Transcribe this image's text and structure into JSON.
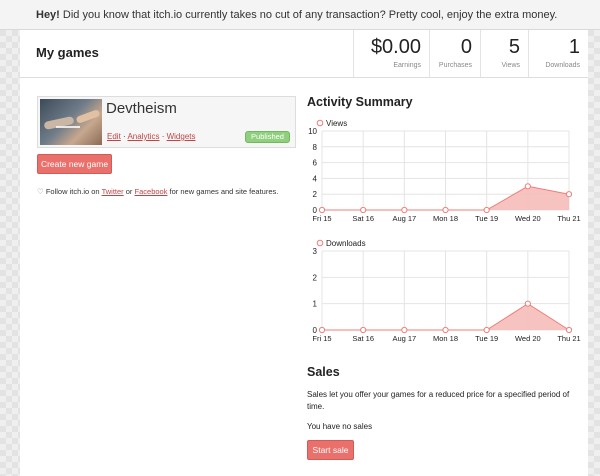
{
  "notice": {
    "bold": "Hey!",
    "text": "Did you know that itch.io currently takes no cut of any transaction? Pretty cool, enjoy the extra money."
  },
  "header": {
    "title": "My games",
    "stats": [
      {
        "value": "$0.00",
        "label": "Earnings"
      },
      {
        "value": "0",
        "label": "Purchases"
      },
      {
        "value": "5",
        "label": "Views"
      },
      {
        "value": "1",
        "label": "Downloads"
      }
    ]
  },
  "game": {
    "title": "Devtheism",
    "links": [
      "Edit",
      "Analytics",
      "Widgets"
    ],
    "status": "Published"
  },
  "create_button": "Create new game",
  "follow": {
    "pre": "Follow itch.io on",
    "twitter": "Twitter",
    "or": "or",
    "facebook": "Facebook",
    "post": "for new games and site features."
  },
  "activity_title": "Activity Summary",
  "chart_data": [
    {
      "type": "area",
      "series": [
        {
          "name": "Views",
          "values": [
            0,
            0,
            0,
            0,
            0,
            3,
            2
          ]
        }
      ],
      "categories": [
        "Fri 15",
        "Sat 16",
        "Aug 17",
        "Mon 18",
        "Tue 19",
        "Wed 20",
        "Thu 21"
      ],
      "yticks": [
        0,
        2,
        4,
        6,
        8,
        10
      ],
      "ylim": [
        0,
        10
      ],
      "grid": true,
      "legend": "top-left",
      "color": "#f07d78",
      "fill": "#f6bdb9"
    },
    {
      "type": "area",
      "series": [
        {
          "name": "Downloads",
          "values": [
            0,
            0,
            0,
            0,
            0,
            1,
            0
          ]
        }
      ],
      "categories": [
        "Fri 15",
        "Sat 16",
        "Aug 17",
        "Mon 18",
        "Tue 19",
        "Wed 20",
        "Thu 21"
      ],
      "yticks": [
        0,
        1,
        2,
        3
      ],
      "ylim": [
        0,
        3
      ],
      "grid": true,
      "legend": "top-left",
      "color": "#f07d78",
      "fill": "#f6bdb9"
    }
  ],
  "sales": {
    "title": "Sales",
    "description": "Sales let you offer your games for a reduced price for a specified period of time.",
    "empty": "You have no sales",
    "button": "Start sale"
  }
}
